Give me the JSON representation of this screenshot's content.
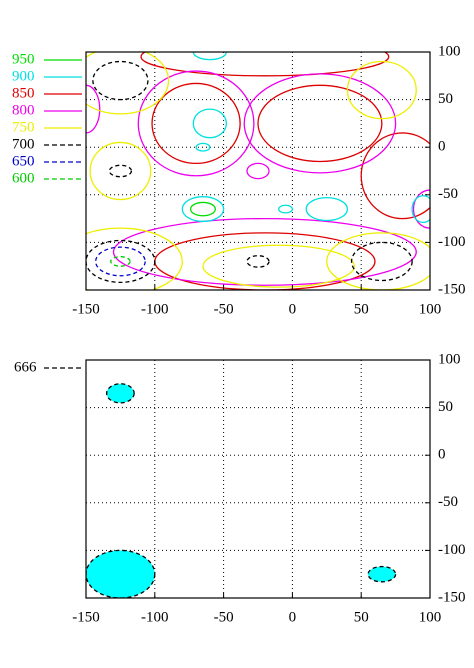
{
  "chart_data": [
    {
      "type": "contour",
      "levels": [
        {
          "value": 950,
          "color": "#00dd00",
          "dashed": false
        },
        {
          "value": 900,
          "color": "#00e0e0",
          "dashed": false
        },
        {
          "value": 850,
          "color": "#dd0000",
          "dashed": false
        },
        {
          "value": 800,
          "color": "#ee00ee",
          "dashed": false
        },
        {
          "value": 750,
          "color": "#eeee00",
          "dashed": false
        },
        {
          "value": 700,
          "color": "#000000",
          "dashed": true
        },
        {
          "value": 650,
          "color": "#0000cc",
          "dashed": true
        },
        {
          "value": 600,
          "color": "#00cc00",
          "dashed": true
        }
      ],
      "xlim": [
        -150,
        100
      ],
      "ylim": [
        -150,
        100
      ],
      "xticks": [
        -150,
        -100,
        -50,
        0,
        50,
        100
      ],
      "yticks": [
        -150,
        -100,
        -50,
        0,
        50,
        100
      ],
      "grid": true,
      "filled": false
    },
    {
      "type": "contour",
      "levels": [
        {
          "value": 666,
          "color": "#000000",
          "dashed": true
        }
      ],
      "fill": "#00ffff",
      "xlim": [
        -150,
        100
      ],
      "ylim": [
        -150,
        100
      ],
      "xticks": [
        -150,
        -100,
        -50,
        0,
        50,
        100
      ],
      "yticks": [
        -150,
        -100,
        -50,
        0,
        50,
        100
      ],
      "grid": true,
      "filled": true
    }
  ]
}
